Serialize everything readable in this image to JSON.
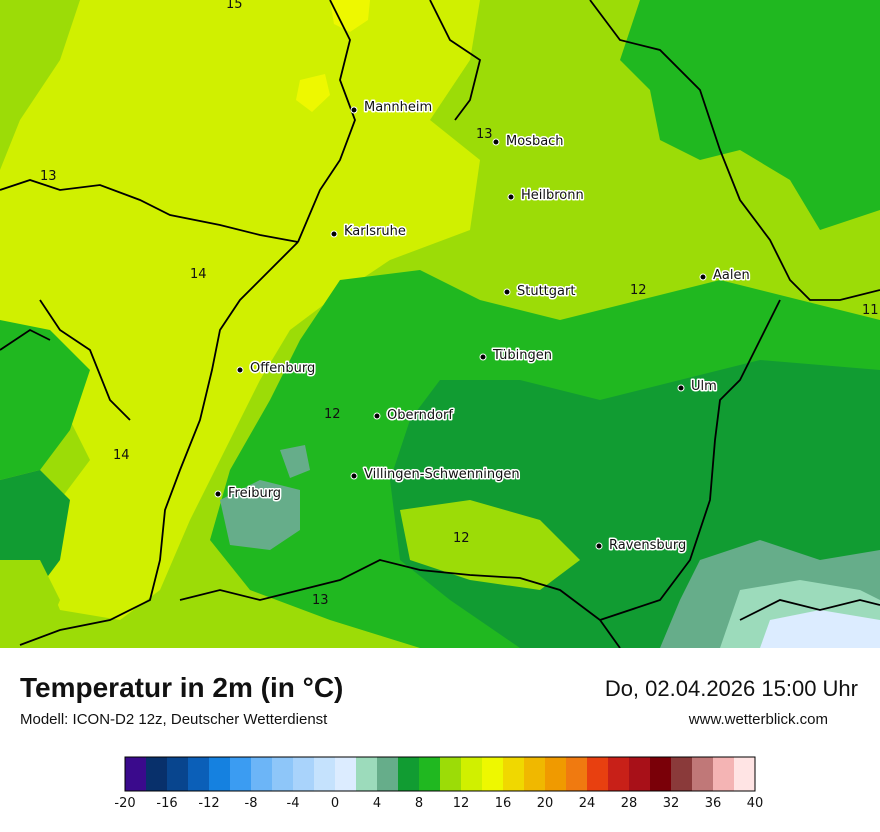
{
  "title": "Temperatur in 2m (in °C)",
  "model": "Modell: ICON-D2 12z, Deutscher Wetterdienst",
  "datetime": "Do, 02.04.2026 15:00 Uhr",
  "website": "www.wetterblick.com",
  "cities": [
    {
      "id": "mannheim",
      "name": "Mannheim"
    },
    {
      "id": "mosbach",
      "name": "Mosbach"
    },
    {
      "id": "heilbronn",
      "name": "Heilbronn"
    },
    {
      "id": "karlsruhe",
      "name": "Karlsruhe"
    },
    {
      "id": "aalen",
      "name": "Aalen"
    },
    {
      "id": "stuttgart",
      "name": "Stuttgart"
    },
    {
      "id": "offenburg",
      "name": "Offenburg"
    },
    {
      "id": "tuebingen",
      "name": "Tübingen"
    },
    {
      "id": "ulm",
      "name": "Ulm"
    },
    {
      "id": "oberndorf",
      "name": "Oberndorf"
    },
    {
      "id": "villingen",
      "name": "Villingen-Schwenningen"
    },
    {
      "id": "freiburg",
      "name": "Freiburg"
    },
    {
      "id": "ravensburg",
      "name": "Ravensburg"
    }
  ],
  "contour_labels": [
    "15",
    "13",
    "13",
    "14",
    "12",
    "11",
    "12",
    "14",
    "12",
    "13"
  ],
  "legend": {
    "ticks": [
      "-20",
      "-16",
      "-12",
      "-8",
      "-4",
      "0",
      "4",
      "8",
      "12",
      "16",
      "20",
      "24",
      "28",
      "32",
      "36",
      "40"
    ],
    "colors": [
      "#3a0a8c",
      "#08306b",
      "#08458e",
      "#0b5fb8",
      "#1581e0",
      "#3b9cf2",
      "#6cb5f7",
      "#8ec6f9",
      "#a9d3fb",
      "#c5e2fd",
      "#dcecff",
      "#9cdbbb",
      "#66ad8a",
      "#119c32",
      "#20b820",
      "#9cdc07",
      "#d0f000",
      "#eef800",
      "#f0d800",
      "#f0b800",
      "#f09a00",
      "#f07a10",
      "#e84010",
      "#c82018",
      "#a81018",
      "#7a0008",
      "#8a3a3a",
      "#c07878",
      "#f4b4b4",
      "#ffe4e4"
    ]
  }
}
